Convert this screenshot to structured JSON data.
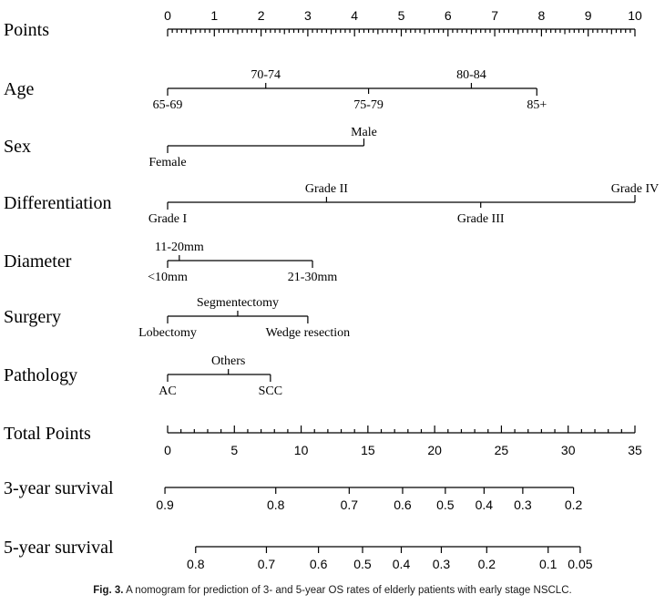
{
  "chart_data": {
    "type": "nomogram",
    "rows": [
      {
        "name": "Points",
        "kind": "scale",
        "min": 0,
        "max": 10,
        "labels": [
          0,
          1,
          2,
          3,
          4,
          5,
          6,
          7,
          8,
          9,
          10
        ],
        "minor": 0.1
      },
      {
        "name": "Age",
        "kind": "factor",
        "levels": [
          {
            "label": "65-69",
            "points": 0,
            "pos": "below"
          },
          {
            "label": "70-74",
            "points": 2.1,
            "pos": "above"
          },
          {
            "label": "75-79",
            "points": 4.3,
            "pos": "below"
          },
          {
            "label": "80-84",
            "points": 6.5,
            "pos": "above"
          },
          {
            "label": "85+",
            "points": 7.9,
            "pos": "below"
          }
        ]
      },
      {
        "name": "Sex",
        "kind": "factor",
        "levels": [
          {
            "label": "Female",
            "points": 0,
            "pos": "below"
          },
          {
            "label": "Male",
            "points": 4.2,
            "pos": "above"
          }
        ]
      },
      {
        "name": "Differentiation",
        "kind": "factor",
        "levels": [
          {
            "label": "Grade I",
            "points": 0,
            "pos": "below"
          },
          {
            "label": "Grade II",
            "points": 3.4,
            "pos": "above"
          },
          {
            "label": "Grade III",
            "points": 6.7,
            "pos": "below"
          },
          {
            "label": "Grade IV",
            "points": 10,
            "pos": "above"
          }
        ]
      },
      {
        "name": "Diameter",
        "kind": "factor",
        "levels": [
          {
            "label": "<10mm",
            "points": 0,
            "pos": "below"
          },
          {
            "label": "11-20mm",
            "points": 0.25,
            "pos": "above"
          },
          {
            "label": "21-30mm",
            "points": 3.1,
            "pos": "below"
          }
        ]
      },
      {
        "name": "Surgery",
        "kind": "factor",
        "levels": [
          {
            "label": "Lobectomy",
            "points": 0,
            "pos": "below"
          },
          {
            "label": "Segmentectomy",
            "points": 1.5,
            "pos": "above"
          },
          {
            "label": "Wedge resection",
            "points": 3.0,
            "pos": "below"
          }
        ]
      },
      {
        "name": "Pathology",
        "kind": "factor",
        "levels": [
          {
            "label": "AC",
            "points": 0,
            "pos": "below"
          },
          {
            "label": "Others",
            "points": 1.3,
            "pos": "above"
          },
          {
            "label": "SCC",
            "points": 2.2,
            "pos": "below"
          }
        ]
      },
      {
        "name": "Total Points",
        "kind": "scale",
        "min": 0,
        "max": 35,
        "labels": [
          0,
          5,
          10,
          15,
          20,
          25,
          30,
          35
        ],
        "minor": 1
      },
      {
        "name": "3-year survival",
        "kind": "prob",
        "ticks": [
          {
            "label": "0.9",
            "total": -0.2
          },
          {
            "label": "0.8",
            "total": 8.1
          },
          {
            "label": "0.7",
            "total": 13.6
          },
          {
            "label": "0.6",
            "total": 17.6
          },
          {
            "label": "0.5",
            "total": 20.8
          },
          {
            "label": "0.4",
            "total": 23.7
          },
          {
            "label": "0.3",
            "total": 26.6
          },
          {
            "label": "0.2",
            "total": 30.4
          }
        ]
      },
      {
        "name": "5-year survival",
        "kind": "prob",
        "ticks": [
          {
            "label": "0.8",
            "total": 2.1
          },
          {
            "label": "0.7",
            "total": 7.4
          },
          {
            "label": "0.6",
            "total": 11.3
          },
          {
            "label": "0.5",
            "total": 14.6
          },
          {
            "label": "0.4",
            "total": 17.5
          },
          {
            "label": "0.3",
            "total": 20.5
          },
          {
            "label": "0.2",
            "total": 23.9
          },
          {
            "label": "0.1",
            "total": 28.5
          },
          {
            "label": "0.05",
            "total": 30.9
          }
        ]
      }
    ]
  },
  "caption": {
    "label": "Fig. 3.",
    "text": "A nomogram for prediction of 3- and 5-year OS rates of elderly patients with early stage NSCLC."
  }
}
